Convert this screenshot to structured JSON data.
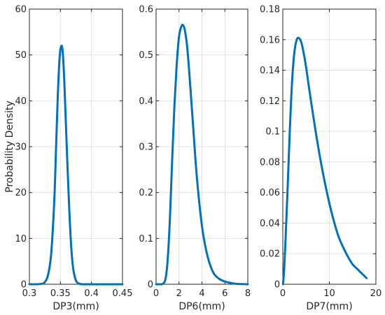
{
  "chart_data": [
    {
      "type": "line",
      "xlabel": "DP3(mm)",
      "ylabel": "Probability Density",
      "xlim": [
        0.3,
        0.45
      ],
      "ylim": [
        0,
        60
      ],
      "xticks": [
        0.3,
        0.35,
        0.4,
        0.45
      ],
      "yticks": [
        0,
        10,
        20,
        30,
        40,
        50,
        60
      ],
      "xtick_labels": [
        "0.3",
        "0.35",
        "0.4",
        "0.45"
      ],
      "ytick_labels": [
        "0",
        "10",
        "20",
        "30",
        "40",
        "50",
        "60"
      ],
      "grid": true,
      "series": [
        {
          "color": "#0072BD",
          "x": [
            0.3,
            0.31,
            0.32,
            0.325,
            0.33,
            0.335,
            0.34,
            0.343,
            0.346,
            0.349,
            0.352,
            0.354,
            0.356,
            0.358,
            0.361,
            0.364,
            0.367,
            0.37,
            0.374,
            0.378,
            0.385,
            0.4,
            0.45
          ],
          "y": [
            0,
            0,
            0.1,
            0.5,
            2,
            6.5,
            18,
            30,
            42,
            50,
            52,
            50,
            45,
            38,
            27,
            17,
            9,
            4,
            1.2,
            0.3,
            0,
            0,
            0
          ]
        }
      ]
    },
    {
      "type": "line",
      "xlabel": "DP6(mm)",
      "ylabel": "",
      "xlim": [
        0,
        8
      ],
      "ylim": [
        0,
        0.6
      ],
      "xticks": [
        0,
        2,
        4,
        6,
        8
      ],
      "yticks": [
        0,
        0.1,
        0.2,
        0.3,
        0.4,
        0.5,
        0.6
      ],
      "xtick_labels": [
        "0",
        "2",
        "4",
        "6",
        "8"
      ],
      "ytick_labels": [
        "0",
        "0.1",
        "0.2",
        "0.3",
        "0.4",
        "0.5",
        "0.6"
      ],
      "grid": true,
      "series": [
        {
          "color": "#0072BD",
          "x": [
            0,
            0.5,
            0.8,
            1.0,
            1.2,
            1.4,
            1.6,
            1.8,
            2.0,
            2.2,
            2.35,
            2.5,
            2.7,
            2.9,
            3.1,
            3.3,
            3.5,
            3.8,
            4.1,
            4.5,
            5.0,
            5.5,
            6.0,
            6.5,
            7.0,
            8.0
          ],
          "y": [
            0,
            0,
            0.01,
            0.05,
            0.14,
            0.27,
            0.39,
            0.48,
            0.54,
            0.562,
            0.565,
            0.555,
            0.52,
            0.46,
            0.39,
            0.32,
            0.25,
            0.17,
            0.11,
            0.06,
            0.025,
            0.012,
            0.006,
            0.003,
            0.001,
            0
          ]
        }
      ]
    },
    {
      "type": "line",
      "xlabel": "DP7(mm)",
      "ylabel": "",
      "xlim": [
        0,
        20
      ],
      "ylim": [
        0,
        0.18
      ],
      "xticks": [
        0,
        10,
        20
      ],
      "yticks": [
        0,
        0.02,
        0.04,
        0.06,
        0.08,
        0.1,
        0.12,
        0.14,
        0.16,
        0.18
      ],
      "xtick_labels": [
        "0",
        "10",
        "20"
      ],
      "ytick_labels": [
        "0",
        "0.02",
        "0.04",
        "0.06",
        "0.08",
        "0.1",
        "0.12",
        "0.14",
        "0.16",
        "0.18"
      ],
      "grid": true,
      "series": [
        {
          "color": "#0072BD",
          "x": [
            0.05,
            0.3,
            0.6,
            1.0,
            1.5,
            2.0,
            2.5,
            3.0,
            3.5,
            4.0,
            4.5,
            5.0,
            6.0,
            7.0,
            8.0,
            9.0,
            10.0,
            11.0,
            12.0,
            13.0,
            14.0,
            15.0,
            16.0,
            17.0,
            18.0
          ],
          "y": [
            0,
            0.01,
            0.03,
            0.06,
            0.1,
            0.133,
            0.152,
            0.16,
            0.161,
            0.158,
            0.151,
            0.142,
            0.121,
            0.101,
            0.083,
            0.067,
            0.053,
            0.041,
            0.031,
            0.024,
            0.018,
            0.013,
            0.01,
            0.007,
            0.004
          ]
        }
      ]
    }
  ]
}
